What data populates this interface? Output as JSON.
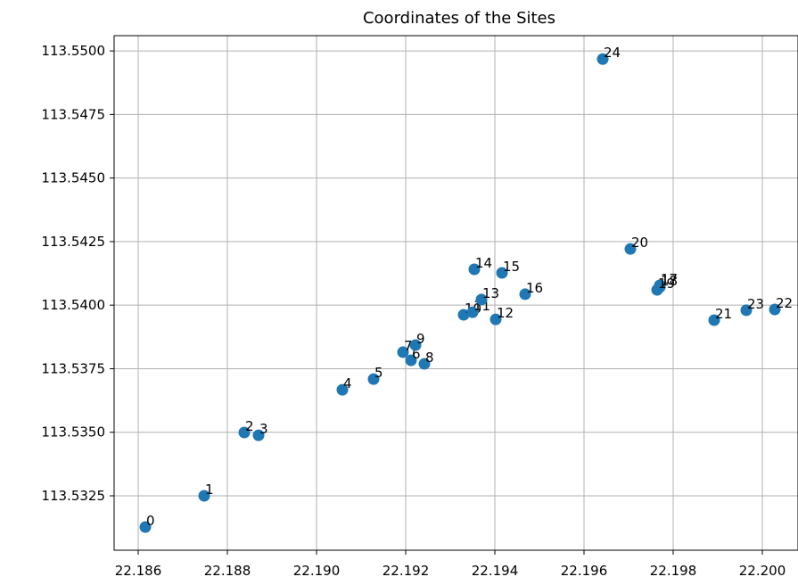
{
  "chart_data": {
    "type": "scatter",
    "title": "Coordinates of the Sites",
    "color": "#1f77b4",
    "grid": true,
    "labels": [
      "0",
      "1",
      "2",
      "3",
      "4",
      "5",
      "6",
      "7",
      "8",
      "9",
      "10",
      "11",
      "12",
      "13",
      "14",
      "15",
      "16",
      "17",
      "18",
      "19",
      "20",
      "21",
      "22",
      "23",
      "24"
    ],
    "x": [
      22.18616,
      22.18748,
      22.18838,
      22.1887,
      22.19058,
      22.19128,
      22.19212,
      22.19194,
      22.19242,
      22.19222,
      22.1933,
      22.1935,
      22.19402,
      22.1937,
      22.19354,
      22.19416,
      22.19468,
      22.1977,
      22.1977,
      22.19764,
      22.19704,
      22.19892,
      22.20028,
      22.19964,
      22.19642
    ],
    "values": [
      113.53127,
      113.5325,
      113.53499,
      113.53488,
      113.53667,
      113.53709,
      113.53783,
      113.53815,
      113.53769,
      113.53843,
      113.53962,
      113.53972,
      113.53944,
      113.54022,
      113.54141,
      113.54127,
      113.54043,
      113.54078,
      113.54071,
      113.5406,
      113.54221,
      113.53941,
      113.53983,
      113.5398,
      113.54968
    ],
    "xlim": [
      22.18546,
      22.2008
    ],
    "ylim": [
      113.53036,
      113.5506
    ],
    "xticks": [
      22.186,
      22.188,
      {
        "value": 22.19,
        "label": "22.190"
      },
      22.192,
      22.194,
      22.196,
      22.198,
      {
        "value": 22.2,
        "label": "22.200"
      }
    ],
    "yticks": [
      {
        "value": 113.5325,
        "label": "113.5325"
      },
      {
        "value": 113.535,
        "label": "113.5350"
      },
      {
        "value": 113.5375,
        "label": "113.5375"
      },
      {
        "value": 113.54,
        "label": "113.5400"
      },
      {
        "value": 113.5425,
        "label": "113.5425"
      },
      {
        "value": 113.545,
        "label": "113.5450"
      },
      {
        "value": 113.5475,
        "label": "113.5475"
      },
      {
        "value": 113.55,
        "label": "113.5500"
      }
    ]
  }
}
